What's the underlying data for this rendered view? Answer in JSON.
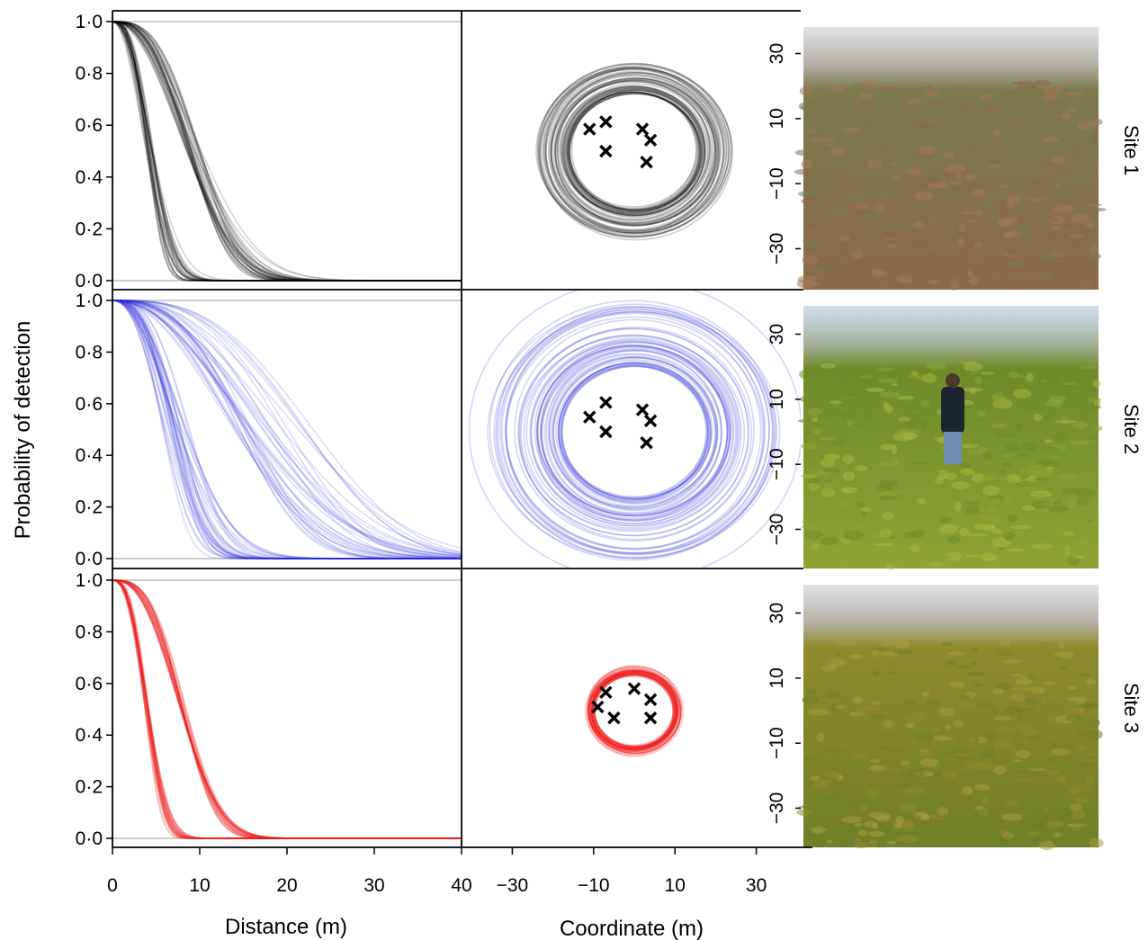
{
  "chart_data": {
    "type": "line",
    "ylabel": "Probability of detection",
    "x_axis_left": {
      "label": "Distance (m)",
      "ticks": [
        0,
        10,
        20,
        30,
        40
      ],
      "tick_labels": [
        "0",
        "10",
        "20",
        "30",
        "40"
      ],
      "range": [
        0,
        40
      ]
    },
    "y_axis_left": {
      "ticks": [
        0.0,
        0.2,
        0.4,
        0.6,
        0.8,
        1.0
      ],
      "tick_labels": [
        "0·0",
        "0·2",
        "0·4",
        "0·6",
        "0·8",
        "1·0"
      ],
      "range": [
        0,
        1
      ]
    },
    "x_axis_right": {
      "label": "Coordinate (m)",
      "ticks": [
        -30,
        -10,
        10,
        30
      ],
      "tick_labels": [
        "−30",
        "−10",
        "10",
        "30"
      ]
    },
    "y_axis_right": {
      "ticks": [
        30,
        10,
        -10,
        -30
      ],
      "tick_labels": [
        "30",
        "10",
        "−10",
        "−30"
      ]
    },
    "sites": [
      {
        "name": "Site 1",
        "color": "#000000",
        "curve_count": 70,
        "sigma_range_m": [
          4.5,
          7.5
        ],
        "sigma_typical_m": 5.5,
        "shape_range": [
          2.0,
          3.2
        ],
        "ring_radius_range_m": [
          16,
          24
        ],
        "traps": [
          [
            -11,
            6
          ],
          [
            -7,
            8
          ],
          [
            -7,
            0
          ],
          [
            2,
            6
          ],
          [
            4,
            3
          ],
          [
            3,
            -3
          ]
        ],
        "photo_colors": [
          "#8a6a4a",
          "#7b7a4c",
          "#a07858"
        ]
      },
      {
        "name": "Site 2",
        "color": "#2b2bd9",
        "curve_count": 70,
        "sigma_range_m": [
          6.5,
          20
        ],
        "sigma_typical_m": 10,
        "shape_range": [
          2.0,
          3.2
        ],
        "ring_radius_range_m": [
          18,
          42
        ],
        "traps": [
          [
            -11,
            4
          ],
          [
            -7,
            8
          ],
          [
            -7,
            0
          ],
          [
            2,
            6
          ],
          [
            4,
            3
          ],
          [
            3,
            -3
          ]
        ],
        "photo_colors": [
          "#8fa334",
          "#6f8a2a",
          "#a7b640"
        ]
      },
      {
        "name": "Site 3",
        "color": "#ee1c1c",
        "curve_count": 70,
        "sigma_range_m": [
          4.2,
          5.4
        ],
        "sigma_typical_m": 4.8,
        "shape_range": [
          2.4,
          3.2
        ],
        "ring_radius_range_m": [
          10,
          12
        ],
        "traps": [
          [
            -9,
            1
          ],
          [
            -7,
            5
          ],
          [
            -5,
            -2
          ],
          [
            0,
            6
          ],
          [
            4,
            3
          ],
          [
            4,
            -2
          ]
        ],
        "photo_colors": [
          "#6f7f28",
          "#8f8a2c",
          "#a79a40"
        ]
      }
    ]
  }
}
